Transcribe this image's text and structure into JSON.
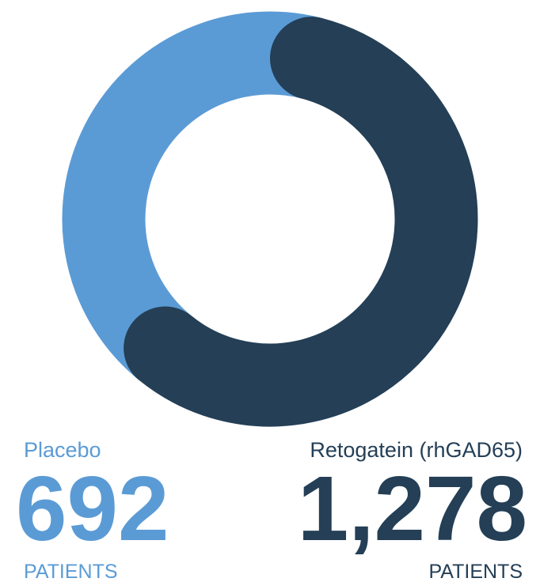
{
  "chart_data": {
    "type": "donut",
    "categories": [
      "Placebo",
      "Retogatein (rhGAD65)"
    ],
    "values": [
      692,
      1278
    ],
    "value_labels": [
      "692",
      "1,278"
    ],
    "units": [
      "PATIENTS",
      "PATIENTS"
    ],
    "colors": [
      "#5b9bd5",
      "#243f56"
    ]
  }
}
